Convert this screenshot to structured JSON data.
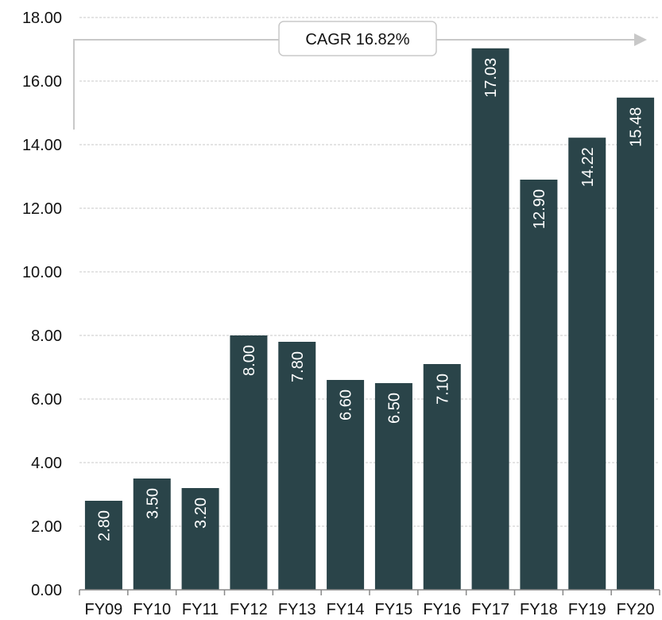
{
  "chart_data": {
    "type": "bar",
    "categories": [
      "FY09",
      "FY10",
      "FY11",
      "FY12",
      "FY13",
      "FY14",
      "FY15",
      "FY16",
      "FY17",
      "FY18",
      "FY19",
      "FY20"
    ],
    "values": [
      2.8,
      3.5,
      3.2,
      8.0,
      7.8,
      6.6,
      6.5,
      7.1,
      17.03,
      12.9,
      14.22,
      15.48
    ],
    "value_labels": [
      "2.80",
      "3.50",
      "3.20",
      "8.00",
      "7.80",
      "6.60",
      "6.50",
      "7.10",
      "17.03",
      "12.90",
      "14.22",
      "15.48"
    ],
    "y_ticks": [
      "0.00",
      "2.00",
      "4.00",
      "6.00",
      "8.00",
      "10.00",
      "12.00",
      "14.00",
      "16.00",
      "18.00"
    ],
    "ylim": [
      0,
      18
    ],
    "grid": true,
    "legend": "none",
    "annotation": "CAGR 16.82%",
    "colors": {
      "bar": "#2a4449",
      "grid": "#c8c8c8",
      "arrow": "#c8c8c8",
      "axis": "#888888"
    }
  }
}
